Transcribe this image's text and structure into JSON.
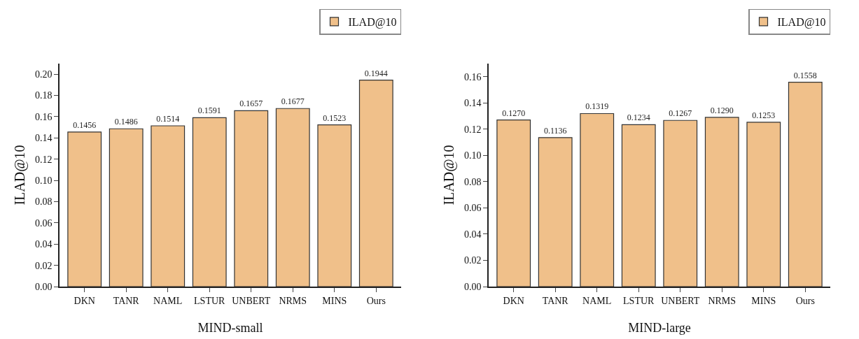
{
  "chart_data": [
    {
      "type": "bar",
      "xlabel": "MIND-small",
      "ylabel": "ILAD@10",
      "categories": [
        "DKN",
        "TANR",
        "NAML",
        "LSTUR",
        "UNBERT",
        "NRMS",
        "MINS",
        "Ours"
      ],
      "series": [
        {
          "name": "ILAD@10",
          "color": "#f0c08a",
          "values": [
            0.1456,
            0.1486,
            0.1514,
            0.1591,
            0.1657,
            0.1677,
            0.1523,
            0.1944
          ],
          "value_labels": [
            "0.1456",
            "0.1486",
            "0.1514",
            "0.1591",
            "0.1657",
            "0.1677",
            "0.1523",
            "0.1944"
          ]
        }
      ],
      "ylim": [
        0,
        0.21
      ],
      "yticks": [
        {
          "value": 0,
          "label": "0.00"
        },
        {
          "value": 0.02,
          "label": "0.02"
        },
        {
          "value": 0.04,
          "label": "0.04"
        },
        {
          "value": 0.06,
          "label": "0.06"
        },
        {
          "value": 0.08,
          "label": "0.08"
        },
        {
          "value": 0.1,
          "label": "0.10"
        },
        {
          "value": 0.12,
          "label": "0.12"
        },
        {
          "value": 0.14,
          "label": "0.14"
        },
        {
          "value": 0.16,
          "label": "0.16"
        },
        {
          "value": 0.18,
          "label": "0.18"
        },
        {
          "value": 0.2,
          "label": "0.20"
        }
      ],
      "grid": false,
      "legend": "top right"
    },
    {
      "type": "bar",
      "xlabel": "MIND-large",
      "ylabel": "ILAD@10",
      "categories": [
        "DKN",
        "TANR",
        "NAML",
        "LSTUR",
        "UNBERT",
        "NRMS",
        "MINS",
        "Ours"
      ],
      "series": [
        {
          "name": "ILAD@10",
          "color": "#f0c08a",
          "values": [
            0.127,
            0.1136,
            0.1319,
            0.1234,
            0.1267,
            0.129,
            0.1253,
            0.1558
          ],
          "value_labels": [
            "0.1270",
            "0.1136",
            "0.1319",
            "0.1234",
            "0.1267",
            "0.1290",
            "0.1253",
            "0.1558"
          ]
        }
      ],
      "ylim": [
        0,
        0.17
      ],
      "yticks": [
        {
          "value": 0,
          "label": "0.00"
        },
        {
          "value": 0.02,
          "label": "0.02"
        },
        {
          "value": 0.04,
          "label": "0.04"
        },
        {
          "value": 0.06,
          "label": "0.06"
        },
        {
          "value": 0.08,
          "label": "0.08"
        },
        {
          "value": 0.1,
          "label": "0.10"
        },
        {
          "value": 0.12,
          "label": "0.12"
        },
        {
          "value": 0.14,
          "label": "0.14"
        },
        {
          "value": 0.16,
          "label": "0.16"
        }
      ],
      "grid": false,
      "legend": "top right"
    }
  ]
}
